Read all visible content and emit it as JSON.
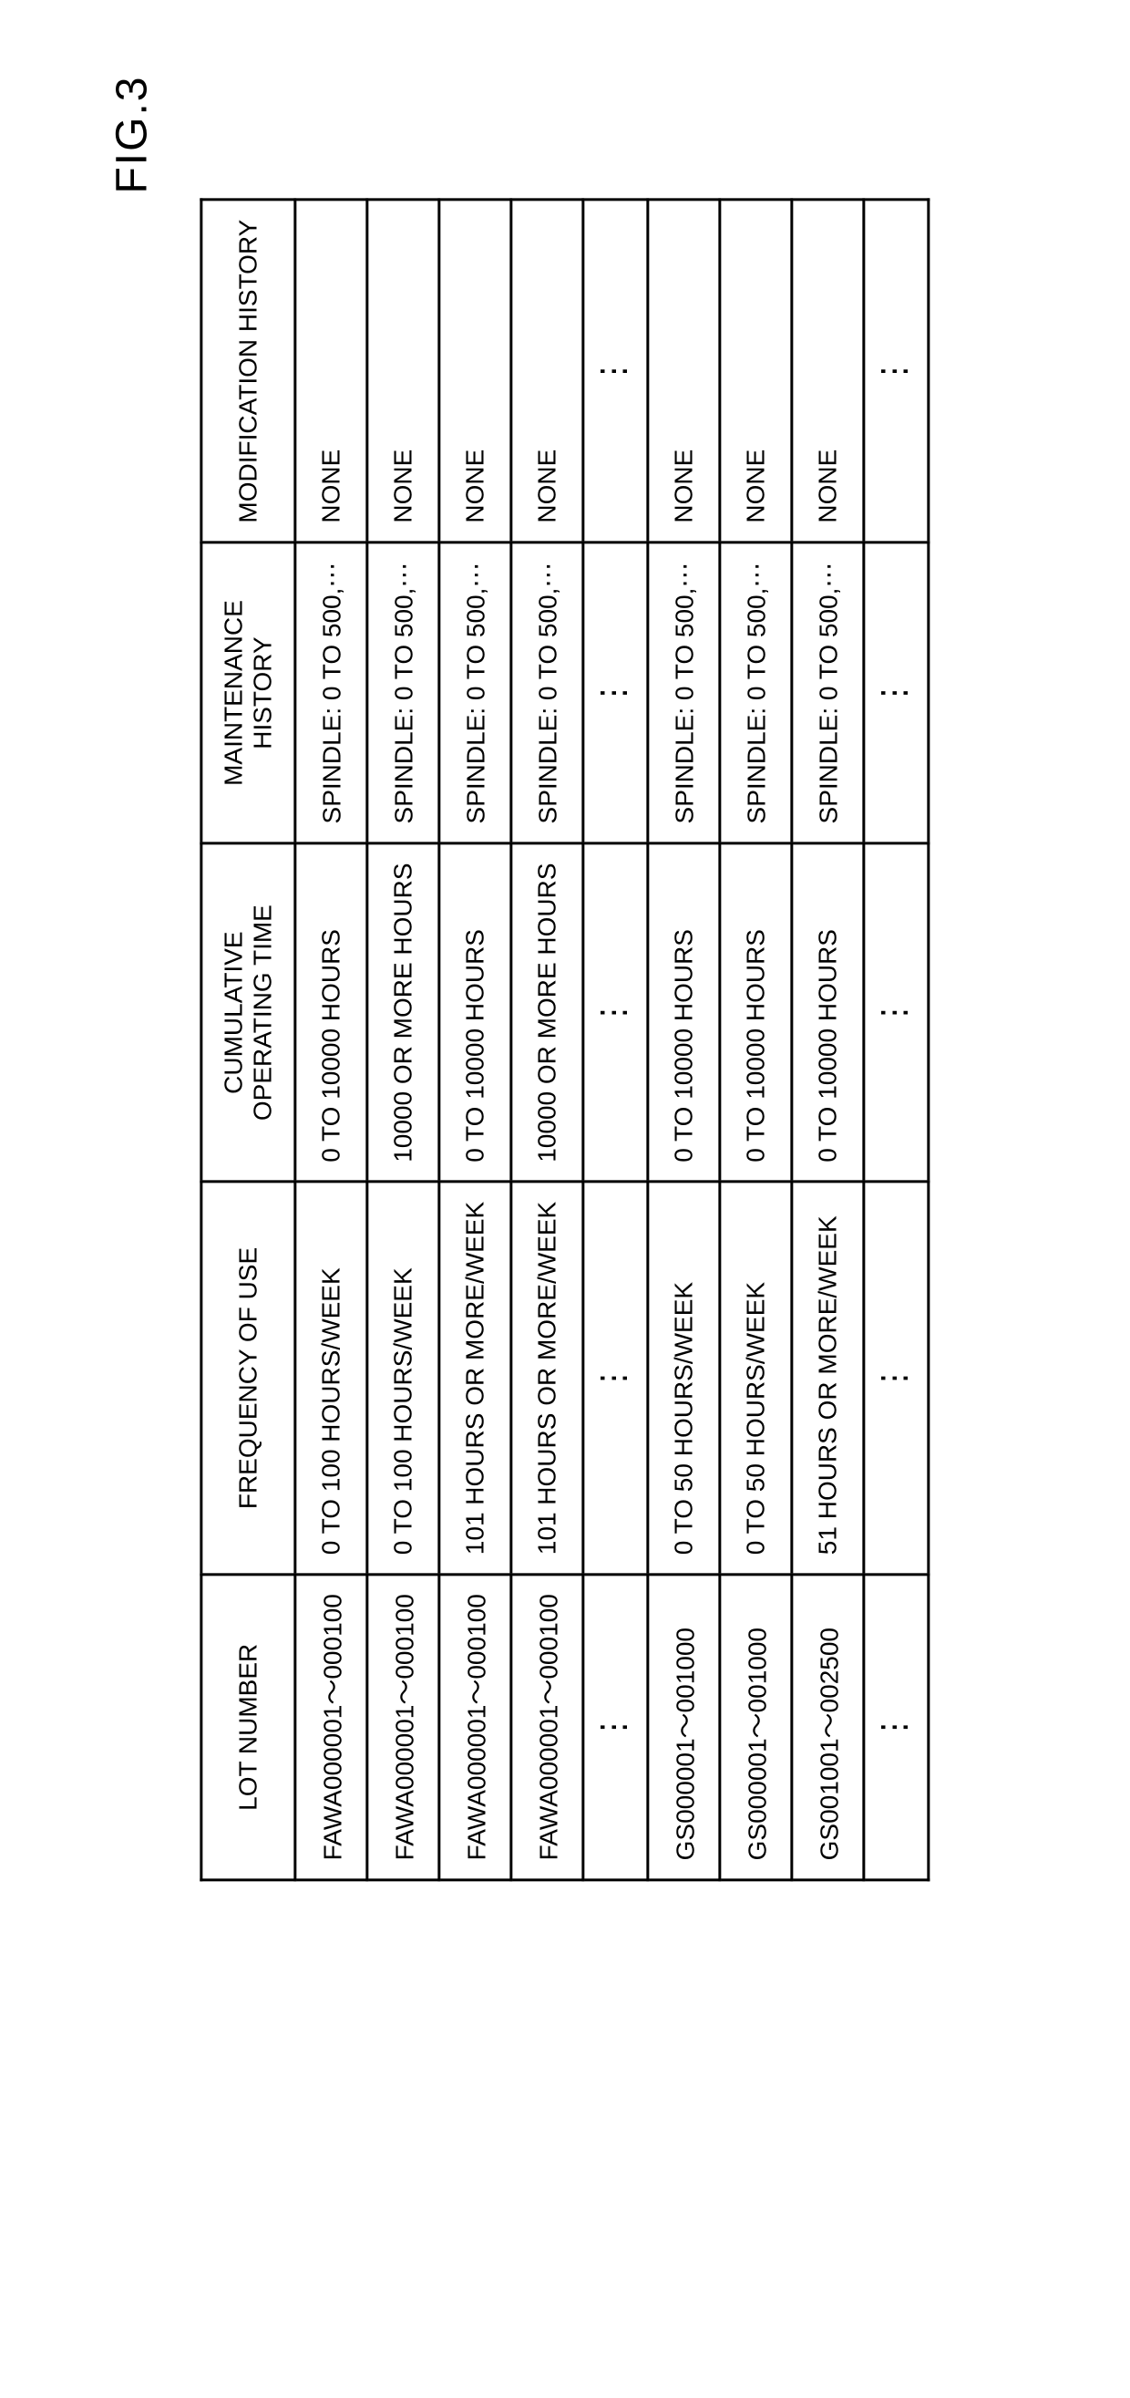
{
  "figure_label": "FIG.3",
  "table": {
    "headers": [
      "LOT NUMBER",
      "FREQUENCY OF USE",
      "CUMULATIVE OPERATING TIME",
      "MAINTENANCE HISTORY",
      "MODIFICATION HISTORY"
    ],
    "rows": [
      {
        "lot": "FAWA000001～000100",
        "freq": "0 TO 100 HOURS/WEEK",
        "cumul": "0 TO 10000 HOURS",
        "maint": "SPINDLE: 0 TO 500,⋯",
        "mod": "NONE"
      },
      {
        "lot": "FAWA000001～000100",
        "freq": "0 TO 100 HOURS/WEEK",
        "cumul": "10000 OR MORE HOURS",
        "maint": "SPINDLE: 0 TO 500,⋯",
        "mod": "NONE"
      },
      {
        "lot": "FAWA000001～000100",
        "freq": "101 HOURS OR MORE/WEEK",
        "cumul": "0 TO 10000 HOURS",
        "maint": "SPINDLE: 0 TO 500,⋯",
        "mod": "NONE"
      },
      {
        "lot": "FAWA000001～000100",
        "freq": "101 HOURS OR MORE/WEEK",
        "cumul": "10000 OR MORE HOURS",
        "maint": "SPINDLE: 0 TO 500,⋯",
        "mod": "NONE"
      },
      {
        "ellipsis": true
      },
      {
        "lot": "GS000001～001000",
        "freq": "0 TO 50 HOURS/WEEK",
        "cumul": "0 TO 10000 HOURS",
        "maint": "SPINDLE: 0 TO 500,⋯",
        "mod": "NONE"
      },
      {
        "lot": "GS000001～001000",
        "freq": "0 TO 50 HOURS/WEEK",
        "cumul": "0 TO 10000 HOURS",
        "maint": "SPINDLE: 0 TO 500,⋯",
        "mod": "NONE"
      },
      {
        "lot": "GS001001～002500",
        "freq": "51 HOURS OR MORE/WEEK",
        "cumul": "0 TO 10000 HOURS",
        "maint": "SPINDLE: 0 TO 500,⋯",
        "mod": "NONE"
      },
      {
        "ellipsis": true
      }
    ],
    "ellipsis_glyph": "⋮",
    "border_color": "#000000",
    "background_color": "#ffffff",
    "font_size_pt": 28,
    "header_font_size_pt": 28
  }
}
